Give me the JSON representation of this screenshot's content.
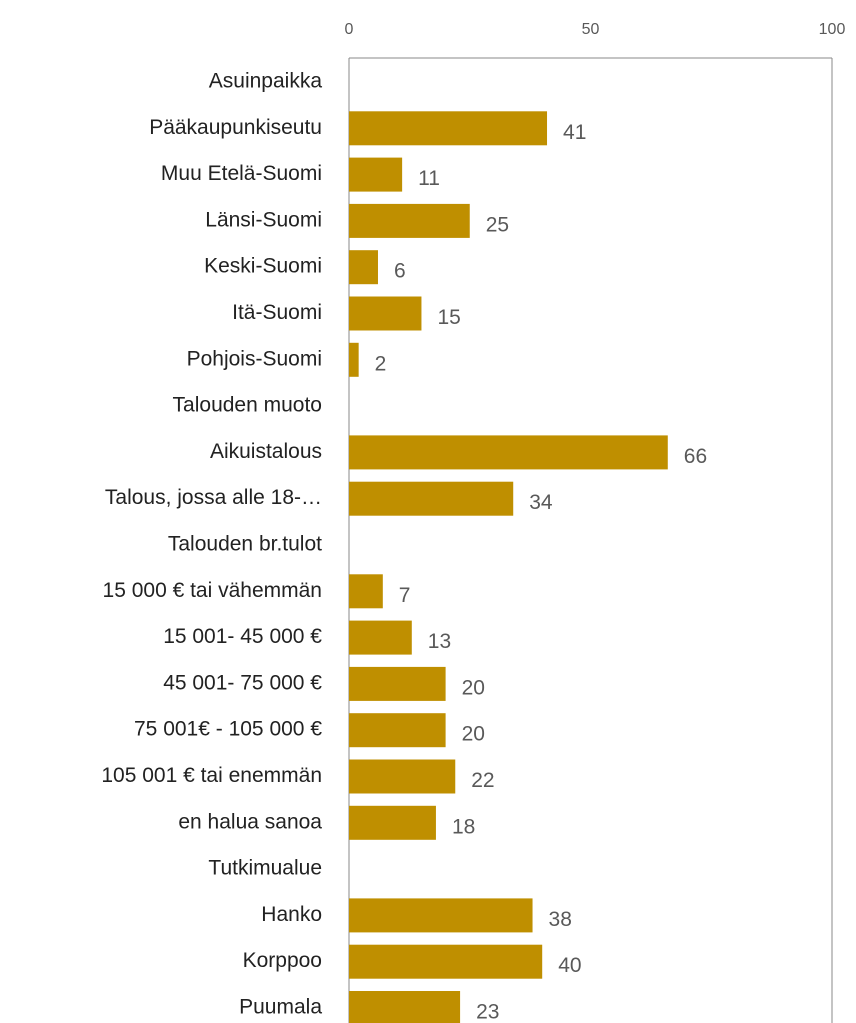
{
  "chart_data": {
    "type": "bar",
    "orientation": "horizontal",
    "color": "#bf8f00",
    "categories": [
      "Asuinpaikka",
      "Pääkaupunkiseutu",
      "Muu Etelä-Suomi",
      "Länsi-Suomi",
      "Keski-Suomi",
      "Itä-Suomi",
      "Pohjois-Suomi",
      "Talouden muoto",
      "Aikuistalous",
      "Talous, jossa alle 18-…",
      "Talouden br.tulot",
      "15 000 € tai vähemmän",
      "15 001- 45 000 €",
      "45 001- 75 000 €",
      "75 001€ - 105 000 €",
      "105 001 € tai enemmän",
      "en halua sanoa",
      "Tutkimualue",
      "Hanko",
      "Korppoo",
      "Puumala"
    ],
    "values": [
      null,
      41,
      11,
      25,
      6,
      15,
      2,
      null,
      66,
      34,
      null,
      7,
      13,
      20,
      20,
      22,
      18,
      null,
      38,
      40,
      23
    ],
    "xlim": [
      0,
      100
    ],
    "xticks": [
      0,
      50,
      100
    ]
  }
}
